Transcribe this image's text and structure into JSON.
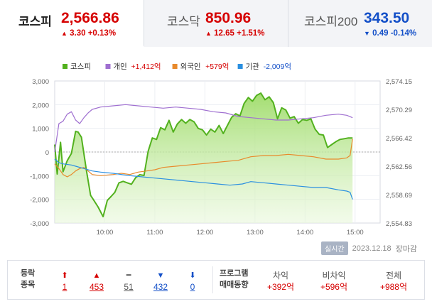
{
  "tabs": [
    {
      "name": "코스피",
      "value": "2,566.86",
      "change_arrow": "▲",
      "change": "3.30",
      "change_pct": "+0.13%",
      "direction": "up",
      "active": true
    },
    {
      "name": "코스닥",
      "value": "850.96",
      "change_arrow": "▲",
      "change": "12.65",
      "change_pct": "+1.51%",
      "direction": "up",
      "active": false
    },
    {
      "name": "코스피200",
      "value": "343.50",
      "change_arrow": "▼",
      "change": "0.49",
      "change_pct": "-0.14%",
      "direction": "down",
      "active": false
    }
  ],
  "legend": [
    {
      "label": "코스피",
      "color": "#52b11e"
    },
    {
      "label": "개인",
      "value": "+1,412억",
      "color": "#9f6fd0"
    },
    {
      "label": "외국인",
      "value": "+579억",
      "color": "#e88a2c"
    },
    {
      "label": "기관",
      "value": "-2,009억",
      "color": "#2a8fe0"
    }
  ],
  "chart_data": {
    "type": "line",
    "x_ticks": [
      "10:00",
      "11:00",
      "12:00",
      "13:00",
      "14:00",
      "15:00"
    ],
    "y_left_ticks": [
      "3,000",
      "2,000",
      "1,000",
      "0",
      "-1,000",
      "-2,000",
      "-3,000"
    ],
    "y_right_ticks": [
      "2,574.15",
      "2,570.29",
      "2,566.42",
      "2,562.56",
      "2,558.69",
      "2,554.83"
    ],
    "y_left_range": [
      -3000,
      3000
    ],
    "y_right_range": [
      2554.83,
      2574.15
    ],
    "x_range_minutes": [
      540,
      930
    ],
    "series": [
      {
        "name": "코스피",
        "axis": "right",
        "color": "#52b11e",
        "fill": true,
        "points": [
          [
            540,
            2565.5
          ],
          [
            543,
            2561.5
          ],
          [
            547,
            2565.8
          ],
          [
            550,
            2561.8
          ],
          [
            555,
            2563.3
          ],
          [
            560,
            2564.3
          ],
          [
            565,
            2567.3
          ],
          [
            568,
            2567.2
          ],
          [
            572,
            2566.5
          ],
          [
            578,
            2562.0
          ],
          [
            583,
            2558.6
          ],
          [
            587,
            2557.9
          ],
          [
            592,
            2557.0
          ],
          [
            598,
            2555.7
          ],
          [
            603,
            2557.9
          ],
          [
            608,
            2558.5
          ],
          [
            612,
            2559.0
          ],
          [
            617,
            2560.3
          ],
          [
            622,
            2560.5
          ],
          [
            627,
            2560.3
          ],
          [
            632,
            2560.1
          ],
          [
            637,
            2561.0
          ],
          [
            642,
            2561.4
          ],
          [
            647,
            2561.3
          ],
          [
            652,
            2564.6
          ],
          [
            657,
            2566.4
          ],
          [
            662,
            2566.2
          ],
          [
            667,
            2567.8
          ],
          [
            672,
            2567.5
          ],
          [
            677,
            2568.8
          ],
          [
            682,
            2567.2
          ],
          [
            687,
            2568.3
          ],
          [
            692,
            2568.9
          ],
          [
            697,
            2568.4
          ],
          [
            702,
            2568.9
          ],
          [
            707,
            2568.6
          ],
          [
            712,
            2567.7
          ],
          [
            717,
            2567.5
          ],
          [
            722,
            2566.8
          ],
          [
            727,
            2567.6
          ],
          [
            732,
            2567.2
          ],
          [
            737,
            2568.1
          ],
          [
            742,
            2567.0
          ],
          [
            747,
            2568.1
          ],
          [
            752,
            2569.2
          ],
          [
            757,
            2569.7
          ],
          [
            762,
            2569.4
          ],
          [
            767,
            2571.1
          ],
          [
            772,
            2571.9
          ],
          [
            777,
            2571.4
          ],
          [
            782,
            2572.2
          ],
          [
            787,
            2572.5
          ],
          [
            792,
            2571.6
          ],
          [
            797,
            2572.0
          ],
          [
            802,
            2571.2
          ],
          [
            807,
            2569.0
          ],
          [
            812,
            2570.5
          ],
          [
            817,
            2570.2
          ],
          [
            822,
            2569.1
          ],
          [
            827,
            2569.3
          ],
          [
            832,
            2568.4
          ],
          [
            837,
            2568.9
          ],
          [
            842,
            2568.8
          ],
          [
            847,
            2569.0
          ],
          [
            852,
            2567.6
          ],
          [
            857,
            2566.9
          ],
          [
            862,
            2566.8
          ],
          [
            867,
            2565.1
          ],
          [
            872,
            2565.5
          ],
          [
            877,
            2565.9
          ],
          [
            882,
            2566.2
          ],
          [
            887,
            2566.3
          ],
          [
            892,
            2566.4
          ],
          [
            897,
            2566.4
          ]
        ]
      },
      {
        "name": "개인",
        "axis": "left",
        "color": "#9f6fd0",
        "points": [
          [
            540,
            0
          ],
          [
            545,
            1200
          ],
          [
            550,
            1300
          ],
          [
            555,
            1600
          ],
          [
            560,
            1700
          ],
          [
            565,
            1350
          ],
          [
            570,
            1200
          ],
          [
            575,
            1450
          ],
          [
            580,
            1650
          ],
          [
            585,
            1800
          ],
          [
            595,
            1900
          ],
          [
            610,
            1950
          ],
          [
            625,
            2000
          ],
          [
            640,
            1950
          ],
          [
            655,
            1900
          ],
          [
            670,
            1850
          ],
          [
            685,
            1900
          ],
          [
            700,
            1850
          ],
          [
            715,
            1800
          ],
          [
            730,
            1700
          ],
          [
            745,
            1650
          ],
          [
            760,
            1500
          ],
          [
            775,
            1450
          ],
          [
            790,
            1400
          ],
          [
            805,
            1350
          ],
          [
            820,
            1350
          ],
          [
            835,
            1400
          ],
          [
            850,
            1450
          ],
          [
            865,
            1550
          ],
          [
            880,
            1600
          ],
          [
            890,
            1550
          ],
          [
            897,
            1450
          ]
        ]
      },
      {
        "name": "외국인",
        "axis": "left",
        "color": "#e88a2c",
        "points": [
          [
            540,
            -500
          ],
          [
            545,
            -700
          ],
          [
            550,
            -950
          ],
          [
            555,
            -1050
          ],
          [
            560,
            -950
          ],
          [
            565,
            -800
          ],
          [
            570,
            -700
          ],
          [
            575,
            -650
          ],
          [
            580,
            -800
          ],
          [
            585,
            -950
          ],
          [
            595,
            -1000
          ],
          [
            610,
            -950
          ],
          [
            620,
            -900
          ],
          [
            630,
            -950
          ],
          [
            640,
            -850
          ],
          [
            650,
            -800
          ],
          [
            660,
            -750
          ],
          [
            670,
            -650
          ],
          [
            685,
            -600
          ],
          [
            700,
            -550
          ],
          [
            715,
            -500
          ],
          [
            730,
            -450
          ],
          [
            745,
            -400
          ],
          [
            760,
            -350
          ],
          [
            770,
            -250
          ],
          [
            775,
            -200
          ],
          [
            790,
            -150
          ],
          [
            805,
            -150
          ],
          [
            820,
            -100
          ],
          [
            835,
            -150
          ],
          [
            850,
            -200
          ],
          [
            865,
            -300
          ],
          [
            880,
            -300
          ],
          [
            890,
            -250
          ],
          [
            894,
            -150
          ],
          [
            897,
            550
          ]
        ]
      },
      {
        "name": "기관",
        "axis": "left",
        "color": "#2a8fe0",
        "points": [
          [
            540,
            -300
          ],
          [
            545,
            -450
          ],
          [
            550,
            -500
          ],
          [
            560,
            -550
          ],
          [
            565,
            -600
          ],
          [
            575,
            -700
          ],
          [
            585,
            -800
          ],
          [
            595,
            -850
          ],
          [
            610,
            -900
          ],
          [
            620,
            -950
          ],
          [
            630,
            -1000
          ],
          [
            645,
            -1050
          ],
          [
            660,
            -1100
          ],
          [
            675,
            -1150
          ],
          [
            690,
            -1200
          ],
          [
            705,
            -1250
          ],
          [
            720,
            -1300
          ],
          [
            735,
            -1350
          ],
          [
            750,
            -1400
          ],
          [
            765,
            -1350
          ],
          [
            775,
            -1250
          ],
          [
            790,
            -1300
          ],
          [
            805,
            -1350
          ],
          [
            820,
            -1400
          ],
          [
            835,
            -1450
          ],
          [
            850,
            -1500
          ],
          [
            865,
            -1500
          ],
          [
            880,
            -1600
          ],
          [
            890,
            -1650
          ],
          [
            894,
            -1700
          ],
          [
            897,
            -2000
          ]
        ]
      }
    ]
  },
  "timestamp": {
    "badge": "실시간",
    "date": "2023.12.18",
    "status": "장마감"
  },
  "breadth": {
    "label_line1": "등락",
    "label_line2": "종목",
    "items": [
      {
        "icon": "⬆",
        "value": "1",
        "color": "#d60000"
      },
      {
        "icon": "▲",
        "value": "453",
        "color": "#d60000"
      },
      {
        "icon": "━",
        "value": "51",
        "color": "#555555"
      },
      {
        "icon": "▼",
        "value": "432",
        "color": "#1450c8"
      },
      {
        "icon": "⬇",
        "value": "0",
        "color": "#1450c8"
      }
    ]
  },
  "program": {
    "label_line1": "프로그램",
    "label_line2": "매매동향",
    "items": [
      {
        "header": "차익",
        "value": "+392억"
      },
      {
        "header": "비차익",
        "value": "+596억"
      },
      {
        "header": "전체",
        "value": "+988억"
      }
    ]
  }
}
